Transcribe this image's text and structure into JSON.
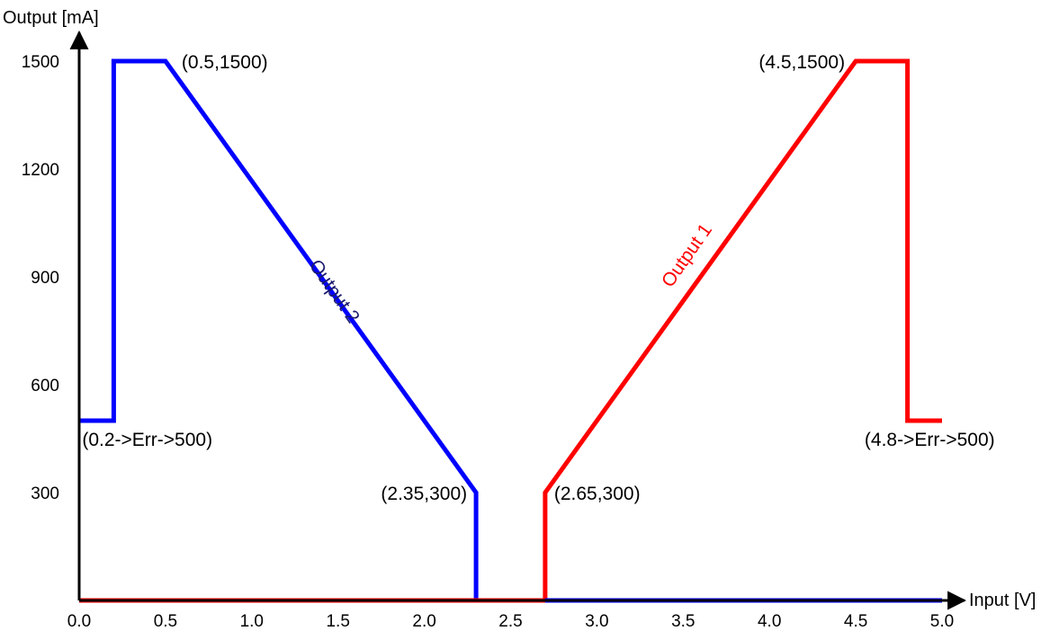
{
  "chart_data": {
    "type": "line",
    "title": "",
    "xlabel": "Input [V]",
    "ylabel": "Output [mA]",
    "xlim": [
      0,
      5
    ],
    "ylim": [
      0,
      1500
    ],
    "grid": false,
    "colors": {
      "axis": "#000000",
      "output1": "#ff0000",
      "output2": "#0000ff",
      "output2_label": "#1a1a6e"
    },
    "x_ticks": [
      "0.0",
      "0.5",
      "1.0",
      "1.5",
      "2.0",
      "2.5",
      "3.0",
      "3.5",
      "4.0",
      "4.5",
      "5.0"
    ],
    "y_ticks": [
      "300",
      "600",
      "900",
      "1200",
      "1500"
    ],
    "series": [
      {
        "name": "Output 2",
        "color": "#0000ff",
        "x": [
          0.0,
          0.2,
          0.2,
          0.5,
          2.3,
          2.3,
          2.7,
          5.0
        ],
        "y": [
          500,
          500,
          1500,
          1500,
          300,
          0,
          0,
          0
        ]
      },
      {
        "name": "Output 1",
        "color": "#ff0000",
        "x": [
          0.0,
          2.7,
          2.7,
          4.5,
          4.8,
          4.8,
          5.0
        ],
        "y": [
          0,
          0,
          300,
          1500,
          1500,
          500,
          500
        ]
      }
    ],
    "annotations": [
      {
        "text": "(0.5,1500)",
        "x": 0.5,
        "y": 1500
      },
      {
        "text": "(4.5,1500)",
        "x": 4.5,
        "y": 1500
      },
      {
        "text": "(0.2->Err->500)",
        "x": 0.2,
        "y": 500
      },
      {
        "text": "(4.8->Err->500)",
        "x": 4.8,
        "y": 500
      },
      {
        "text": "(2.35,300)",
        "x": 2.3,
        "y": 300
      },
      {
        "text": "(2.65,300)",
        "x": 2.7,
        "y": 300
      }
    ]
  }
}
